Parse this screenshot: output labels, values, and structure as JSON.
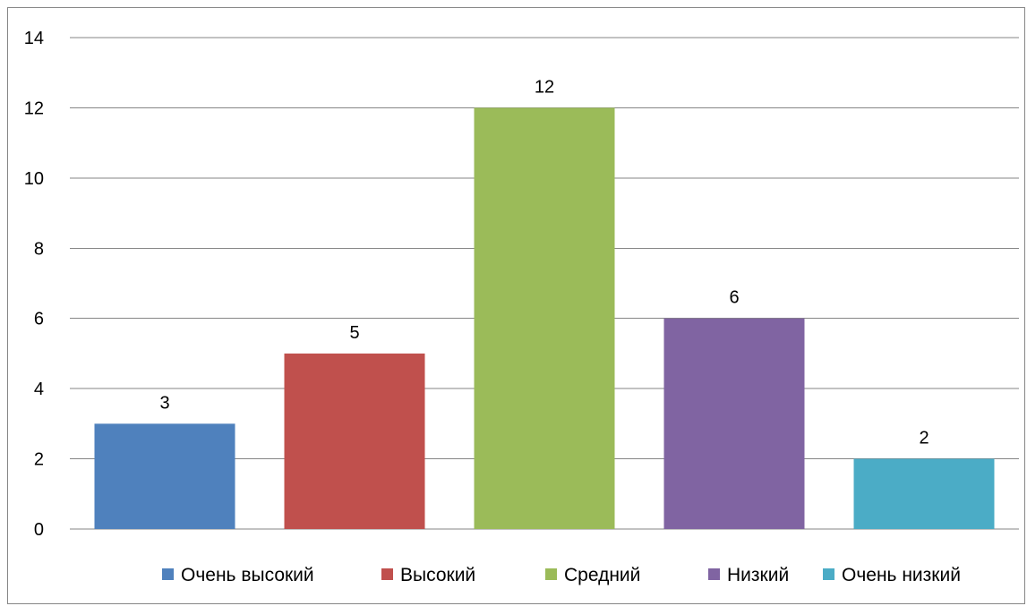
{
  "chart_data": {
    "type": "bar",
    "categories": [
      "Очень высокий",
      "Высокий",
      "Средний",
      "Низкий",
      "Очень низкий"
    ],
    "values": [
      3,
      5,
      12,
      6,
      2
    ],
    "colors": [
      "#4F81BD",
      "#C0504D",
      "#9BBB59",
      "#8064A2",
      "#4BACC6"
    ],
    "ylim": [
      0,
      14
    ],
    "yticks": [
      "0",
      "2",
      "4",
      "6",
      "8",
      "10",
      "12",
      "14"
    ],
    "data_labels": [
      "3",
      "5",
      "12",
      "6",
      "2"
    ],
    "grid": true,
    "gridline_color": "#868686",
    "legend": {
      "placement": "bottom",
      "entries": [
        "Очень высокий",
        "Высокий",
        "Средний",
        "Низкий",
        "Очень низкий"
      ]
    },
    "title": "",
    "xlabel": "",
    "ylabel": ""
  }
}
